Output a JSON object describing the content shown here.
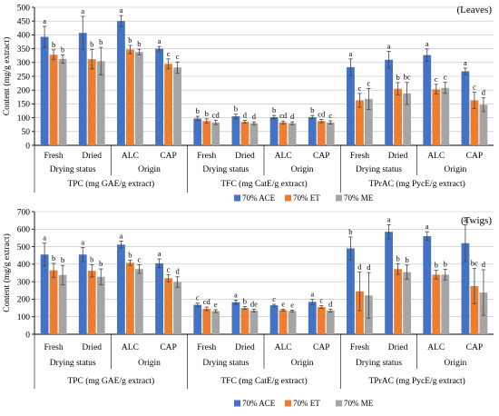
{
  "colors": {
    "ACE": "#4472c4",
    "ET": "#ed7d31",
    "ME": "#a5a5a5",
    "axis": "#000000",
    "grid": "#bfbfbf",
    "error": "#444444"
  },
  "group_labels": [
    "Drying status",
    "Origin",
    "Drying status",
    "Origin",
    "Drying status",
    "Origin"
  ],
  "chart_data": [
    {
      "type": "bar",
      "panel_label": "(Leaves)",
      "ylabel": "Content (mg/g extract)",
      "ylim": [
        0,
        500
      ],
      "yticks": [
        0,
        50,
        100,
        150,
        200,
        250,
        300,
        350,
        400,
        450,
        500
      ],
      "categories": [
        "Fresh",
        "Dried",
        "ALC",
        "CAP",
        "Fresh",
        "Dried",
        "ALC",
        "CAP",
        "Fresh",
        "Dried",
        "ALC",
        "CAP"
      ],
      "section_labels": [
        "TPC (mg GAE/g extract)",
        "TFC (mg CatE/g extract)",
        "TPrAC (mg PycE/g extract)"
      ],
      "series": [
        {
          "name": "70% ACE",
          "values": [
            393,
            407,
            450,
            350,
            97,
            105,
            102,
            102,
            283,
            310,
            327,
            268
          ],
          "errors": [
            38,
            60,
            20,
            8,
            8,
            8,
            6,
            6,
            30,
            30,
            22,
            12
          ],
          "letters": [
            "a",
            "a",
            "a",
            "a",
            "b",
            "b",
            "b",
            "b",
            "a",
            "a",
            "a",
            "a"
          ]
        },
        {
          "name": "70% ET",
          "values": [
            328,
            312,
            347,
            295,
            88,
            85,
            83,
            88,
            163,
            205,
            203,
            163
          ],
          "errors": [
            18,
            35,
            15,
            18,
            8,
            5,
            5,
            6,
            25,
            22,
            18,
            30
          ],
          "letters": [
            "b",
            "b",
            "b",
            "c",
            "b",
            "d",
            "cd",
            "cd",
            "c",
            "b",
            "c",
            "c"
          ]
        },
        {
          "name": "70% ME",
          "values": [
            313,
            305,
            338,
            282,
            83,
            80,
            80,
            83,
            168,
            188,
            208,
            147
          ],
          "errors": [
            15,
            50,
            10,
            20,
            8,
            5,
            5,
            6,
            38,
            40,
            20,
            25
          ],
          "letters": [
            "b",
            "b",
            "b",
            "c",
            "cd",
            "d",
            "d",
            "c",
            "c",
            "bc",
            "c",
            "d"
          ]
        }
      ]
    },
    {
      "type": "bar",
      "panel_label": "(Twigs)",
      "ylabel": "Content (mg/g extract)",
      "ylim": [
        0,
        700
      ],
      "yticks": [
        0,
        100,
        200,
        300,
        400,
        500,
        600,
        700
      ],
      "categories": [
        "Fresh",
        "Dried",
        "ALC",
        "CAP",
        "Fresh",
        "Dried",
        "ALC",
        "CAP",
        "Fresh",
        "Dried",
        "ALC",
        "CAP"
      ],
      "section_labels": [
        "TPC (mg GAE/g extract)",
        "TFC (mg CatE/g extract)",
        "TPrAC (mg PycE/g extract)"
      ],
      "series": [
        {
          "name": "70% ACE",
          "values": [
            455,
            455,
            512,
            405,
            168,
            183,
            165,
            185,
            490,
            585,
            560,
            520
          ],
          "errors": [
            65,
            40,
            20,
            25,
            10,
            12,
            6,
            15,
            65,
            40,
            25,
            105
          ],
          "letters": [
            "a",
            "a",
            "a",
            "a",
            "c",
            "a",
            "c",
            "a",
            "b",
            "a",
            "a",
            "a"
          ]
        },
        {
          "name": "70% ET",
          "values": [
            365,
            362,
            408,
            320,
            145,
            150,
            138,
            155,
            245,
            372,
            340,
            275
          ],
          "errors": [
            40,
            35,
            15,
            20,
            10,
            8,
            5,
            8,
            110,
            30,
            25,
            100
          ],
          "letters": [
            "b",
            "b",
            "b",
            "c",
            "cd",
            "b",
            "e",
            "c",
            "d",
            "b",
            "b",
            "bc"
          ]
        },
        {
          "name": "70% ME",
          "values": [
            338,
            328,
            372,
            298,
            132,
            135,
            133,
            135,
            222,
            355,
            340,
            238
          ],
          "errors": [
            55,
            45,
            25,
            30,
            8,
            8,
            5,
            8,
            130,
            40,
            30,
            130
          ],
          "letters": [
            "b",
            "b",
            "c",
            "d",
            "e",
            "de",
            "e",
            "d",
            "d",
            "b",
            "b",
            "d"
          ]
        }
      ]
    }
  ]
}
